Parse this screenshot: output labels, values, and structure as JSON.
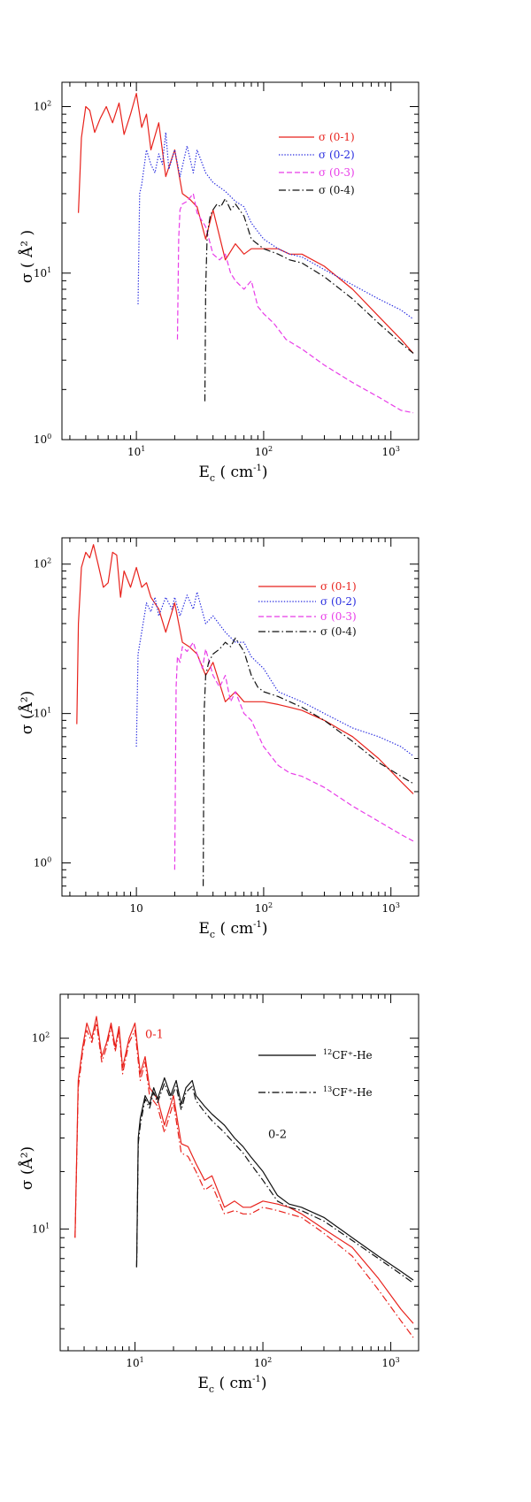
{
  "colors": {
    "red": "#e8221c",
    "blue": "#2a2ee0",
    "magenta": "#e83ce8",
    "black": "#111111"
  },
  "chart_data": [
    {
      "type": "line",
      "xscale": "log",
      "yscale": "log",
      "xlim": [
        2.6,
        1650
      ],
      "ylim": [
        1,
        140
      ],
      "xticks": [
        {
          "v": 10,
          "base": "10",
          "exp": "1"
        },
        {
          "v": 100,
          "base": "10",
          "exp": "2"
        },
        {
          "v": 1000,
          "base": "10",
          "exp": "3"
        }
      ],
      "yticks": [
        {
          "v": 1,
          "base": "10",
          "exp": "0"
        },
        {
          "v": 10,
          "base": "10",
          "exp": "1"
        },
        {
          "v": 100,
          "base": "10",
          "exp": "2"
        }
      ],
      "xlabel": {
        "main": "E",
        "sub": "c",
        "rest": " ( cm",
        "sup": "-1",
        "close": ")"
      },
      "ylabel": "σ ( Å² )",
      "legend_position": "top-right",
      "series": [
        {
          "name": "σ (0-1)",
          "color": "red",
          "dash": "solid",
          "x": [
            3.5,
            3.7,
            4,
            4.3,
            4.7,
            5.2,
            5.8,
            6.5,
            7.3,
            8,
            9,
            10,
            11,
            12,
            13,
            15,
            17,
            20,
            23,
            26,
            30,
            35,
            40,
            50,
            60,
            70,
            80,
            100,
            130,
            160,
            200,
            300,
            500,
            800,
            1200,
            1500
          ],
          "y": [
            23,
            65,
            100,
            95,
            70,
            85,
            100,
            80,
            105,
            68,
            90,
            120,
            75,
            90,
            55,
            80,
            38,
            55,
            30,
            28,
            25,
            16,
            24,
            12,
            15,
            13,
            14,
            14,
            14,
            13,
            13,
            11,
            8,
            5.5,
            4,
            3.3
          ]
        },
        {
          "name": "σ (0-2)",
          "color": "blue",
          "dash": "dotted",
          "x": [
            10.3,
            10.6,
            11,
            12,
            13,
            14,
            15,
            16,
            17,
            18,
            20,
            22,
            25,
            28,
            30,
            35,
            40,
            50,
            60,
            70,
            80,
            100,
            130,
            160,
            200,
            300,
            500,
            800,
            1200,
            1500
          ],
          "y": [
            6.5,
            30,
            34,
            55,
            45,
            40,
            52,
            45,
            70,
            42,
            55,
            38,
            58,
            40,
            55,
            40,
            35,
            31,
            27,
            25,
            20,
            16,
            14,
            13,
            12.5,
            10.5,
            8.5,
            7,
            6,
            5.3
          ]
        },
        {
          "name": "σ (0-3)",
          "color": "magenta",
          "dash": "dashed",
          "x": [
            21,
            21.5,
            22,
            23,
            25,
            28,
            30,
            35,
            40,
            45,
            50,
            55,
            60,
            70,
            80,
            90,
            100,
            120,
            150,
            200,
            300,
            500,
            800,
            1200,
            1500
          ],
          "y": [
            4,
            16,
            24,
            26,
            27,
            30,
            23,
            19,
            13,
            12,
            13,
            10,
            9,
            8,
            9,
            6.3,
            5.7,
            5,
            4,
            3.5,
            2.8,
            2.2,
            1.8,
            1.5,
            1.45
          ]
        },
        {
          "name": "σ (0-4)",
          "color": "black",
          "dash": "dashdot",
          "x": [
            34.5,
            35,
            36,
            38,
            40,
            43,
            46,
            50,
            55,
            60,
            70,
            80,
            100,
            130,
            160,
            200,
            300,
            500,
            800,
            1200,
            1500
          ],
          "y": [
            1.7,
            8,
            17,
            22,
            24,
            26,
            25,
            28,
            24,
            26,
            22,
            16,
            14,
            13,
            12,
            11.5,
            9.5,
            7,
            5,
            3.8,
            3.3
          ]
        }
      ],
      "legend": [
        "σ (0-1)",
        "σ (0-2)",
        "σ (0-3)",
        "σ (0-4)"
      ]
    },
    {
      "type": "line",
      "xscale": "log",
      "yscale": "log",
      "xlim": [
        2.6,
        1650
      ],
      "ylim": [
        0.6,
        150
      ],
      "xticks": [
        {
          "v": 10,
          "base": "10",
          "exp": ""
        },
        {
          "v": 100,
          "base": "10",
          "exp": "2"
        },
        {
          "v": 1000,
          "base": "10",
          "exp": "3"
        }
      ],
      "yticks": [
        {
          "v": 1,
          "base": "10",
          "exp": "0"
        },
        {
          "v": 10,
          "base": "10",
          "exp": "1"
        },
        {
          "v": 100,
          "base": "10",
          "exp": "2"
        }
      ],
      "xlabel": {
        "main": "E",
        "sub": "c",
        "rest": " ( cm",
        "sup": "-1",
        "close": ")"
      },
      "ylabel": "σ (Å²)",
      "legend_position": "top-right",
      "series": [
        {
          "name": "σ (0-1)",
          "color": "red",
          "dash": "solid",
          "x": [
            3.4,
            3.5,
            3.7,
            4,
            4.3,
            4.6,
            5,
            5.5,
            6,
            6.5,
            7,
            7.5,
            8,
            9,
            10,
            11,
            12,
            13,
            15,
            17,
            20,
            23,
            26,
            30,
            35,
            40,
            50,
            60,
            70,
            80,
            100,
            130,
            160,
            200,
            300,
            500,
            800,
            1200,
            1500
          ],
          "y": [
            8.5,
            40,
            95,
            120,
            110,
            135,
            100,
            70,
            75,
            120,
            115,
            60,
            90,
            70,
            95,
            70,
            75,
            60,
            50,
            35,
            55,
            30,
            28,
            25,
            18,
            22,
            12,
            14,
            12,
            12,
            12,
            11.5,
            11,
            10.5,
            9,
            7,
            5,
            3.5,
            2.9
          ]
        },
        {
          "name": "σ (0-2)",
          "color": "blue",
          "dash": "dotted",
          "x": [
            10,
            10.3,
            11,
            12,
            13,
            14,
            15,
            17,
            19,
            20,
            22,
            25,
            28,
            30,
            35,
            40,
            50,
            60,
            70,
            80,
            100,
            130,
            160,
            200,
            300,
            500,
            800,
            1200,
            1500
          ],
          "y": [
            6,
            25,
            35,
            55,
            48,
            60,
            45,
            60,
            50,
            60,
            45,
            62,
            50,
            65,
            40,
            45,
            35,
            30,
            30,
            24,
            20,
            14,
            13,
            12,
            10,
            8,
            7,
            6,
            5.2
          ]
        },
        {
          "name": "σ (0-3)",
          "color": "magenta",
          "dash": "dashed",
          "x": [
            20,
            20.5,
            21,
            22,
            23,
            25,
            28,
            30,
            33,
            35,
            40,
            45,
            50,
            55,
            60,
            70,
            80,
            100,
            130,
            160,
            200,
            300,
            500,
            800,
            1200,
            1500
          ],
          "y": [
            0.9,
            15,
            24,
            22,
            28,
            26,
            30,
            25,
            20,
            27,
            18,
            15,
            18,
            12,
            14,
            10,
            9,
            6,
            4.5,
            4,
            3.8,
            3.2,
            2.4,
            1.9,
            1.55,
            1.4
          ]
        },
        {
          "name": "σ (0-4)",
          "color": "black",
          "dash": "dashdot",
          "x": [
            33.5,
            34,
            35,
            37,
            40,
            45,
            50,
            55,
            60,
            70,
            80,
            90,
            100,
            130,
            160,
            200,
            300,
            500,
            800,
            1200,
            1500
          ],
          "y": [
            0.7,
            10,
            18,
            22,
            25,
            27,
            30,
            28,
            32,
            26,
            18,
            15,
            14,
            13,
            12,
            11,
            9,
            6.5,
            4.7,
            3.8,
            3.4
          ]
        }
      ],
      "legend": [
        "σ (0-1)",
        "σ (0-2)",
        "σ (0-3)",
        "σ (0-4)"
      ]
    },
    {
      "type": "line",
      "xscale": "log",
      "yscale": "log",
      "xlim": [
        2.6,
        1650
      ],
      "ylim": [
        2.3,
        170
      ],
      "xticks": [
        {
          "v": 10,
          "base": "10",
          "exp": "1"
        },
        {
          "v": 100,
          "base": "10",
          "exp": "2"
        },
        {
          "v": 1000,
          "base": "10",
          "exp": "3"
        }
      ],
      "yticks": [
        {
          "v": 10,
          "base": "10",
          "exp": "1"
        },
        {
          "v": 100,
          "base": "10",
          "exp": "2"
        }
      ],
      "xlabel": {
        "main": "E",
        "sub": "c",
        "rest": " ( cm",
        "sup": "-1",
        "close": ")"
      },
      "ylabel": "σ (Å²)",
      "legend_position": "top-right",
      "annotations": [
        {
          "text": "0-1",
          "color": "red",
          "x": 12,
          "y": 100
        },
        {
          "text": "0-2",
          "color": "black",
          "x": 110,
          "y": 30
        }
      ],
      "series": [
        {
          "name": "12CF+-He (0-1)",
          "color": "red",
          "dash": "solid",
          "x": [
            3.4,
            3.6,
            3.9,
            4.2,
            4.6,
            5,
            5.5,
            6,
            6.5,
            7,
            7.5,
            8,
            9,
            10,
            11,
            12,
            13,
            15,
            17,
            20,
            23,
            26,
            30,
            35,
            40,
            50,
            60,
            70,
            80,
            100,
            130,
            160,
            200,
            300,
            500,
            800,
            1200,
            1500
          ],
          "y": [
            9,
            60,
            90,
            120,
            100,
            130,
            80,
            95,
            120,
            90,
            115,
            70,
            100,
            120,
            65,
            80,
            55,
            48,
            35,
            50,
            28,
            27,
            22,
            18,
            19,
            13,
            14,
            13,
            13,
            14,
            13.5,
            13,
            12,
            10,
            8,
            5.5,
            3.8,
            3.2
          ]
        },
        {
          "name": "13CF+-He (0-1)",
          "color": "red",
          "dash": "dashdot",
          "x": [
            3.4,
            3.6,
            3.9,
            4.2,
            4.6,
            5,
            5.5,
            6,
            6.5,
            7,
            7.5,
            8,
            9,
            10,
            11,
            12,
            13,
            15,
            17,
            20,
            23,
            26,
            30,
            35,
            40,
            50,
            60,
            70,
            80,
            100,
            130,
            160,
            200,
            300,
            500,
            800,
            1200,
            1500
          ],
          "y": [
            9,
            55,
            85,
            110,
            95,
            120,
            75,
            90,
            115,
            85,
            110,
            65,
            95,
            110,
            60,
            75,
            50,
            44,
            32,
            46,
            25,
            24,
            20,
            16,
            17,
            12,
            12.5,
            12,
            12,
            13,
            12.5,
            12,
            11.5,
            9.5,
            7.2,
            4.8,
            3.3,
            2.7
          ]
        },
        {
          "name": "12CF+-He (0-2)",
          "color": "black",
          "dash": "solid",
          "x": [
            10.3,
            10.6,
            11,
            12,
            13,
            14,
            15,
            17,
            19,
            21,
            23,
            25,
            28,
            30,
            35,
            40,
            50,
            60,
            70,
            80,
            100,
            130,
            160,
            200,
            300,
            500,
            800,
            1200,
            1500
          ],
          "y": [
            6.3,
            30,
            38,
            50,
            45,
            55,
            48,
            62,
            50,
            60,
            45,
            55,
            60,
            50,
            44,
            40,
            35,
            30,
            27,
            24,
            20,
            15,
            13.5,
            13,
            11.5,
            9,
            7.2,
            6,
            5.4
          ]
        },
        {
          "name": "13CF+-He (0-2)",
          "color": "black",
          "dash": "dashdot",
          "x": [
            10.3,
            10.6,
            11,
            12,
            13,
            14,
            15,
            17,
            19,
            21,
            23,
            25,
            28,
            30,
            35,
            40,
            50,
            60,
            70,
            80,
            100,
            130,
            160,
            200,
            300,
            500,
            800,
            1200,
            1500
          ],
          "y": [
            6.3,
            28,
            35,
            48,
            43,
            52,
            46,
            58,
            48,
            56,
            42,
            52,
            56,
            47,
            41,
            37,
            32,
            28,
            25,
            22,
            18,
            14,
            13,
            12.5,
            11,
            8.7,
            7,
            5.8,
            5.2
          ]
        }
      ],
      "legend": [
        {
          "sup": "12",
          "text": "CF⁺-He"
        },
        {
          "sup": "13",
          "text": "CF⁺-He"
        }
      ]
    }
  ]
}
